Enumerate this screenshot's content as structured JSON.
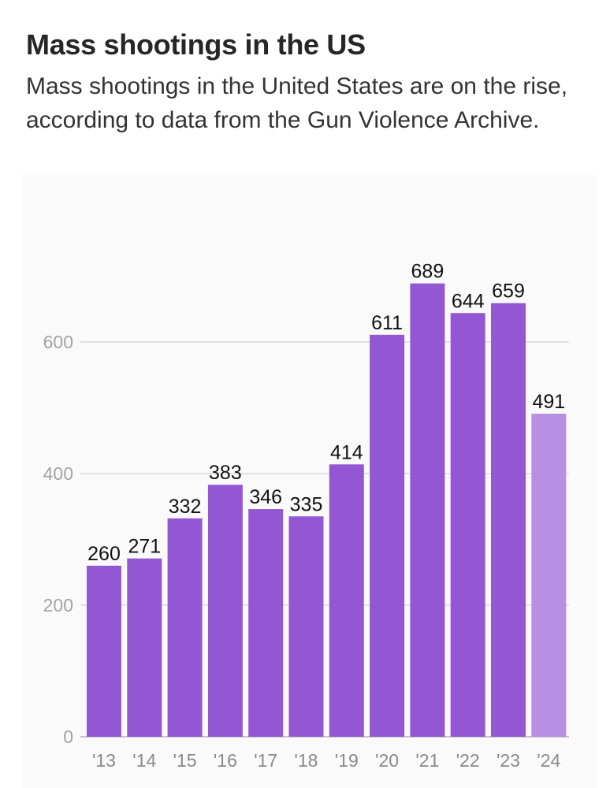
{
  "header": {
    "title": "Mass shootings in the US",
    "subtitle": "Mass shootings in the United States are on the rise, according to data from the Gun Violence Archive."
  },
  "chart_data": {
    "type": "bar",
    "categories": [
      "'13",
      "'14",
      "'15",
      "'16",
      "'17",
      "'18",
      "'19",
      "'20",
      "'21",
      "'22",
      "'23",
      "'24"
    ],
    "values": [
      260,
      271,
      332,
      383,
      346,
      335,
      414,
      611,
      689,
      644,
      659,
      491
    ],
    "ylim": [
      0,
      700
    ],
    "yticks": [
      0,
      200,
      400,
      600
    ],
    "grid": true,
    "bar_color": "#9457d3",
    "partial_year_color": "#b88fe2",
    "partial_year_index": 11,
    "title": "",
    "xlabel": "",
    "ylabel": ""
  }
}
